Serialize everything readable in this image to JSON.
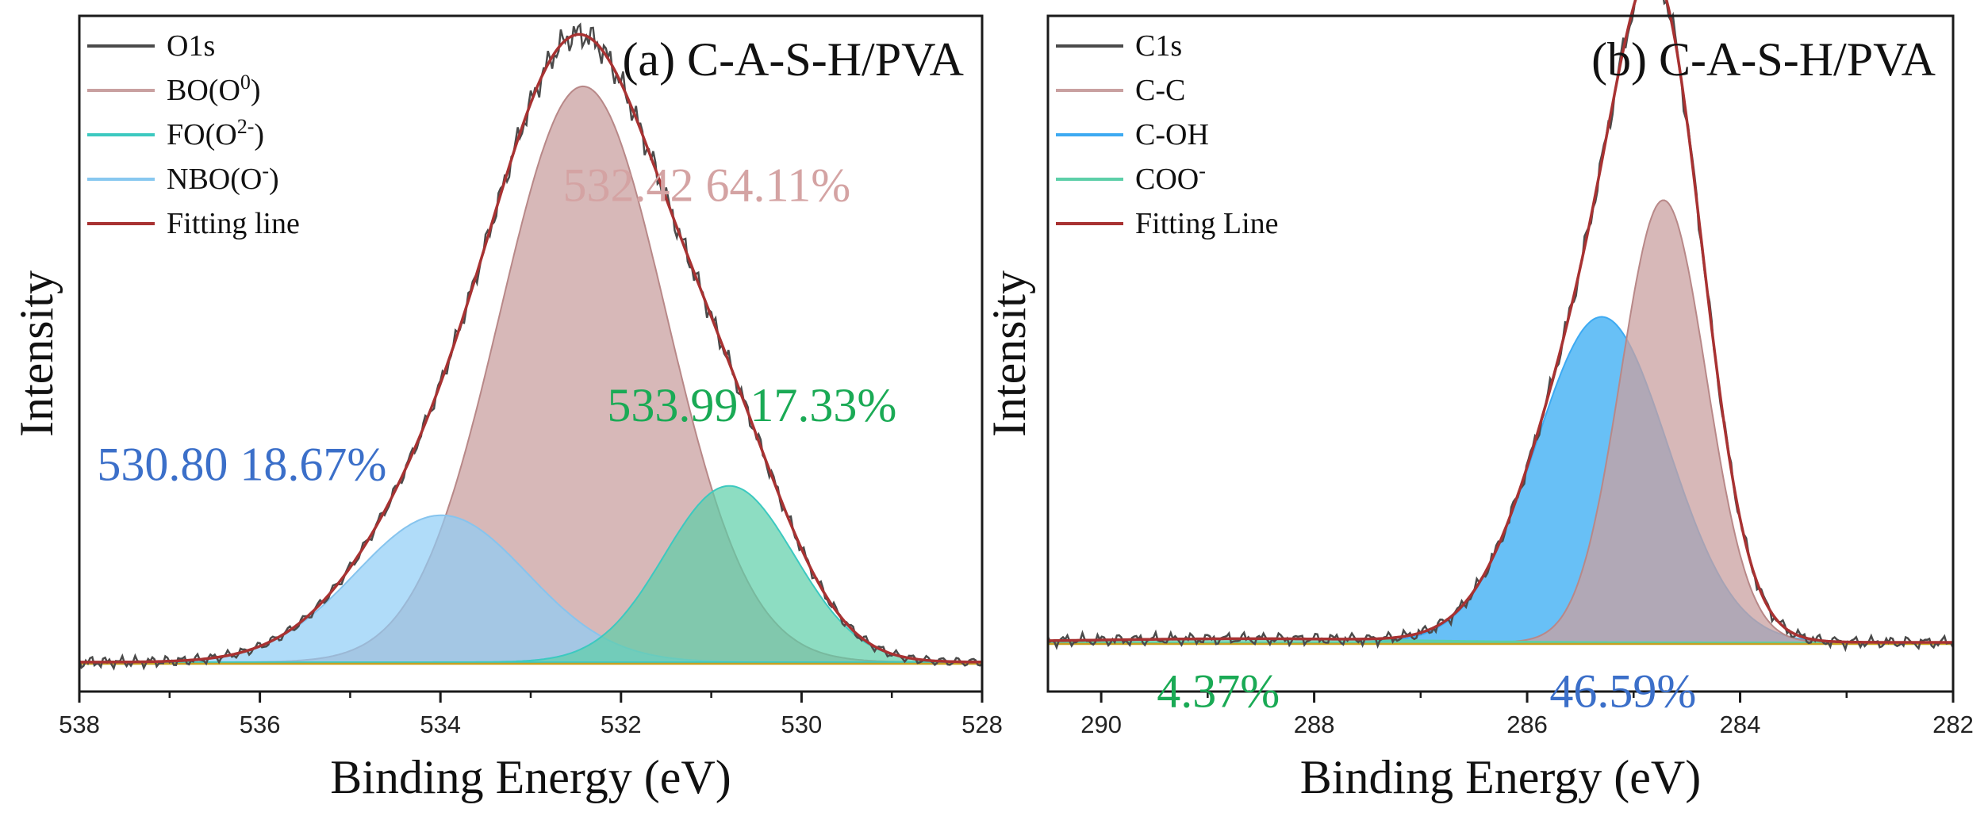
{
  "chart_data": [
    {
      "type": "area",
      "panel": "a",
      "title": "(a) C-A-S-H/PVA",
      "xlabel": "Binding Energy (eV)",
      "ylabel": "Intensity",
      "xlim": [
        538,
        528
      ],
      "x_reversed": true,
      "ylim": [
        0,
        1.15
      ],
      "xticks": [
        538,
        536,
        534,
        532,
        530,
        528
      ],
      "baseline": 0.05,
      "legend_position": "top-left",
      "legend": [
        {
          "key": "raw",
          "label": "O1s",
          "color": "#4a4a4a",
          "kind": "line"
        },
        {
          "key": "bo",
          "label": "BO(O",
          "sup": "0",
          "suffix": ")",
          "color": "#c9a0a0",
          "kind": "line"
        },
        {
          "key": "fo",
          "label": "FO(O",
          "sup": "2-",
          "suffix": ")",
          "color": "#3cc9c0",
          "kind": "line"
        },
        {
          "key": "nbo",
          "label": "NBO(O",
          "sup": "-",
          "suffix": ")",
          "color": "#88c8f0",
          "kind": "line"
        },
        {
          "key": "fit",
          "label": "Fitting line",
          "color": "#a83232",
          "kind": "line"
        }
      ],
      "peaks": [
        {
          "key": "bo",
          "center": 532.42,
          "height": 0.98,
          "sigma": 0.92,
          "fill": "#c9a0a0",
          "stroke": "#b88888",
          "opacity": 0.75
        },
        {
          "key": "nbo",
          "center": 533.99,
          "height": 0.25,
          "sigma": 0.95,
          "fill": "#8ecdf7",
          "stroke": "#86c4ee",
          "opacity": 0.7
        },
        {
          "key": "fo",
          "center": 530.8,
          "height": 0.3,
          "sigma": 0.72,
          "fill": "#5ccfa8",
          "stroke": "#3cc9c0",
          "opacity": 0.7
        }
      ],
      "annotations": [
        {
          "text": "532.42 64.11%",
          "color": "#d4a3a3",
          "x": 531.05,
          "y": 0.835,
          "anchor": "middle"
        },
        {
          "text": "533.99 17.33%",
          "color": "#1aaa55",
          "x": 530.55,
          "y": 0.46,
          "anchor": "middle"
        },
        {
          "text": "530.80 18.67%",
          "color": "#3b6fc9",
          "x": 536.2,
          "y": 0.36,
          "anchor": "middle"
        }
      ]
    },
    {
      "type": "area",
      "panel": "b",
      "title": "(b) C-A-S-H/PVA",
      "xlabel": "Binding Energy (eV)",
      "ylabel": "Intensity",
      "xlim": [
        290.5,
        282
      ],
      "x_reversed": true,
      "ylim": [
        0,
        1.1
      ],
      "xticks": [
        290,
        288,
        286,
        284,
        282
      ],
      "baseline": 0.08,
      "legend_position": "top-left",
      "legend": [
        {
          "key": "raw",
          "label": "C1s",
          "color": "#4a4a4a",
          "kind": "line"
        },
        {
          "key": "cc",
          "label": "C-C",
          "color": "#c9a0a0",
          "kind": "line"
        },
        {
          "key": "coh",
          "label": "C-OH",
          "color": "#3daaf2",
          "kind": "line"
        },
        {
          "key": "coo",
          "label": "COO",
          "sup": "-",
          "suffix": "",
          "color": "#5ccfa8",
          "kind": "line"
        },
        {
          "key": "fit",
          "label": "Fitting Line",
          "color": "#a83232",
          "kind": "line"
        }
      ],
      "peaks": [
        {
          "key": "coh",
          "center": 285.3,
          "height": 0.53,
          "sigma": 0.62,
          "fill": "#4db5f5",
          "stroke": "#3daaf2",
          "opacity": 0.85
        },
        {
          "key": "cc",
          "center": 284.72,
          "height": 0.72,
          "sigma": 0.4,
          "fill": "#c9a0a0",
          "stroke": "#b88888",
          "opacity": 0.75
        },
        {
          "key": "coo",
          "center": 288.6,
          "height": 0.006,
          "sigma": 1.5,
          "fill": "#5ccfa8",
          "stroke": "#5ccfa8",
          "opacity": 0.7
        }
      ],
      "annotations": [
        {
          "text": "4.37%",
          "color": "#1aaa55",
          "x": 288.9,
          "y": -0.025,
          "anchor": "middle"
        },
        {
          "text": "46.59%",
          "color": "#3b6fc9",
          "x": 285.1,
          "y": -0.025,
          "anchor": "middle"
        }
      ]
    }
  ]
}
